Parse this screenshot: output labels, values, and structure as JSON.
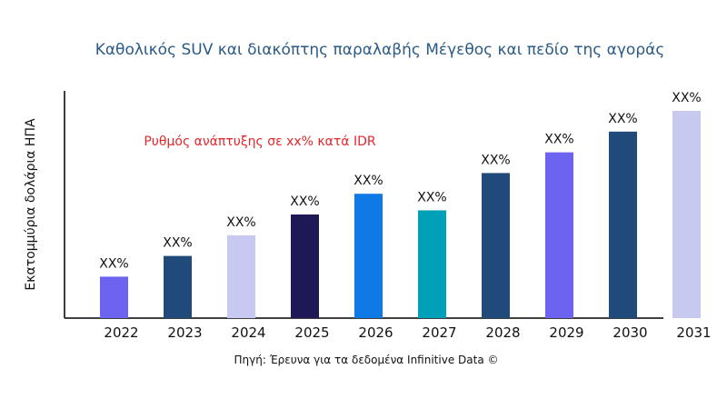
{
  "chart_data": {
    "type": "bar",
    "title": "Καθολικός SUV και διακόπτης παραλαβής Μέγεθος και πεδίο της αγοράς",
    "ylabel": "Εκατομμύρια δολάρια ΗΠΑ",
    "xlabel": "",
    "annotation": "Ρυθμός ανάπτυξης σε xx% κατά IDR",
    "source": "Πηγή: Έρευνα για τα δεδομένα Infinitive Data ©",
    "categories": [
      "2022",
      "2023",
      "2024",
      "2025",
      "2026",
      "2027",
      "2028",
      "2029",
      "2030",
      "2031"
    ],
    "values": [
      20,
      30,
      40,
      50,
      60,
      52,
      70,
      80,
      90,
      100
    ],
    "data_labels": [
      "XX%",
      "XX%",
      "XX%",
      "XX%",
      "XX%",
      "XX%",
      "XX%",
      "XX%",
      "XX%",
      "XX%"
    ],
    "colors": [
      "#6c63f0",
      "#1f4a7a",
      "#c8c9f0",
      "#1f1856",
      "#0f7ae5",
      "#00a0b8",
      "#1f4a7a",
      "#6c63f0",
      "#1f4a7a",
      "#c8c9f0"
    ],
    "ylim": [
      0,
      110
    ],
    "grid": false,
    "title_color": "#2a5a85",
    "annotation_color": "#e3262b"
  }
}
